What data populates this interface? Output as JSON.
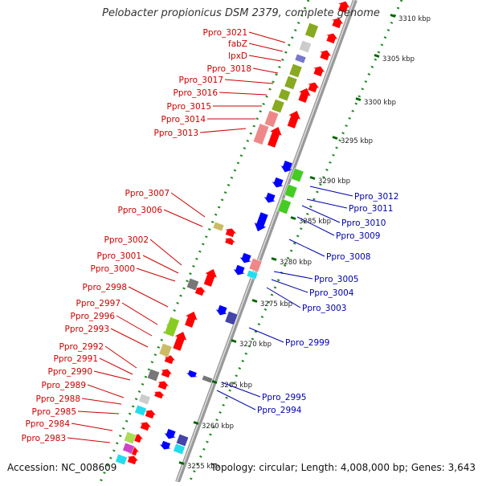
{
  "title": "Pelobacter propionicus DSM 2379, complete genome",
  "footer": {
    "accession": "Accession: NC_008609",
    "stats": "Topology: circular; Length: 4,008,000 bp; Genes: 3,643"
  },
  "colors": {
    "forward_label": "#cc0000",
    "reverse_label": "#0000aa",
    "backbone": "#999999",
    "ruler": "#228822"
  },
  "ticks": [
    "3310 kbp",
    "3305 kbp",
    "3300 kbp",
    "3295 kbp",
    "3290 kbp",
    "3285 kbp",
    "3280 kbp",
    "3275 kbp",
    "3270 kbp",
    "3265 kbp",
    "3260 kbp",
    "3255 kbp"
  ],
  "forward_labels": [
    "Ppro_3021",
    "fabZ",
    "lpxD",
    "Ppro_3018",
    "Ppro_3017",
    "Ppro_3016",
    "Ppro_3015",
    "Ppro_3014",
    "Ppro_3013",
    "Ppro_3007",
    "Ppro_3006",
    "Ppro_3002",
    "Ppro_3001",
    "Ppro_3000",
    "Ppro_2998",
    "Ppro_2997",
    "Ppro_2996",
    "Ppro_2993",
    "Ppro_2992",
    "Ppro_2991",
    "Ppro_2990",
    "Ppro_2989",
    "Ppro_2988",
    "Ppro_2985",
    "Ppro_2984",
    "Ppro_2983"
  ],
  "reverse_labels": [
    "Ppro_3012",
    "Ppro_3011",
    "Ppro_3010",
    "Ppro_3009",
    "Ppro_3008",
    "Ppro_3005",
    "Ppro_3004",
    "Ppro_3003",
    "Ppro_2999",
    "Ppro_2995",
    "Ppro_2994"
  ]
}
